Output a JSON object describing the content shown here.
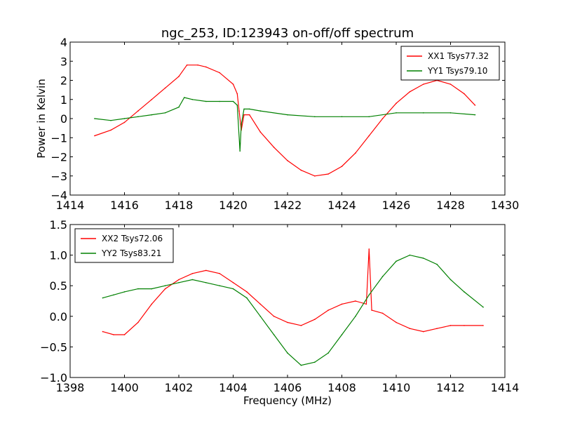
{
  "figure_title": "ngc_253, ID:123943 on-off/off spectrum",
  "chart_data": [
    {
      "type": "line",
      "title": "ngc_253, ID:123943 on-off/off spectrum",
      "xlabel": "",
      "ylabel": "Power in Kelvin",
      "xlim": [
        1414,
        1430
      ],
      "ylim": [
        -4,
        4
      ],
      "x_ticks": [
        1414,
        1416,
        1418,
        1420,
        1422,
        1424,
        1426,
        1428,
        1430
      ],
      "y_ticks": [
        -4,
        -3,
        -2,
        -1,
        0,
        1,
        2,
        3,
        4
      ],
      "x_tick_labels": [
        "1414",
        "1416",
        "1418",
        "1420",
        "1422",
        "1424",
        "1426",
        "1428",
        "1430"
      ],
      "y_tick_labels": [
        "−4",
        "−3",
        "−2",
        "−1",
        "0",
        "1",
        "2",
        "3",
        "4"
      ],
      "grid": false,
      "legend": "top-right",
      "series": [
        {
          "name": "XX1 Tsys77.32",
          "color": "#ff0000",
          "x": [
            1414.9,
            1415.5,
            1416.0,
            1416.5,
            1417.0,
            1417.5,
            1418.0,
            1418.3,
            1418.7,
            1419.0,
            1419.5,
            1420.0,
            1420.15,
            1420.22,
            1420.3,
            1420.4,
            1420.6,
            1421.0,
            1421.5,
            1422.0,
            1422.5,
            1423.0,
            1423.5,
            1424.0,
            1424.5,
            1425.0,
            1425.5,
            1426.0,
            1426.5,
            1427.0,
            1427.5,
            1428.0,
            1428.5,
            1428.9
          ],
          "y": [
            -0.9,
            -0.6,
            -0.2,
            0.4,
            1.0,
            1.6,
            2.2,
            2.8,
            2.8,
            2.7,
            2.4,
            1.8,
            1.3,
            0.4,
            -0.6,
            0.2,
            0.2,
            -0.7,
            -1.5,
            -2.2,
            -2.7,
            -3.0,
            -2.9,
            -2.5,
            -1.8,
            -0.9,
            0.0,
            0.8,
            1.4,
            1.8,
            2.0,
            1.8,
            1.3,
            0.7
          ]
        },
        {
          "name": "YY1 Tsys79.10",
          "color": "#008000",
          "x": [
            1414.9,
            1415.5,
            1416.0,
            1416.5,
            1417.0,
            1417.5,
            1418.0,
            1418.2,
            1418.5,
            1419.0,
            1419.5,
            1420.0,
            1420.15,
            1420.25,
            1420.3,
            1420.4,
            1420.6,
            1421.0,
            1422.0,
            1423.0,
            1424.0,
            1425.0,
            1426.0,
            1427.0,
            1428.0,
            1428.9
          ],
          "y": [
            0.0,
            -0.1,
            0.0,
            0.1,
            0.2,
            0.3,
            0.6,
            1.1,
            1.0,
            0.9,
            0.9,
            0.9,
            0.7,
            -1.7,
            -0.3,
            0.5,
            0.5,
            0.4,
            0.2,
            0.1,
            0.1,
            0.1,
            0.3,
            0.3,
            0.3,
            0.2
          ]
        }
      ]
    },
    {
      "type": "line",
      "title": "",
      "xlabel": "Frequency (MHz)",
      "ylabel": "",
      "xlim": [
        1398,
        1414
      ],
      "ylim": [
        -1.0,
        1.5
      ],
      "x_ticks": [
        1398,
        1400,
        1402,
        1404,
        1406,
        1408,
        1410,
        1412,
        1414
      ],
      "y_ticks": [
        -1.0,
        -0.5,
        0.0,
        0.5,
        1.0,
        1.5
      ],
      "x_tick_labels": [
        "1398",
        "1400",
        "1402",
        "1404",
        "1406",
        "1408",
        "1410",
        "1412",
        "1414"
      ],
      "y_tick_labels": [
        "−1.0",
        "−0.5",
        "0.0",
        "0.5",
        "1.0",
        "1.5"
      ],
      "grid": false,
      "legend": "top-left",
      "series": [
        {
          "name": "XX2 Tsys72.06",
          "color": "#ff0000",
          "x": [
            1399.2,
            1399.6,
            1400.0,
            1400.5,
            1401.0,
            1401.5,
            1402.0,
            1402.5,
            1403.0,
            1403.5,
            1404.0,
            1404.5,
            1405.0,
            1405.5,
            1406.0,
            1406.5,
            1407.0,
            1407.5,
            1408.0,
            1408.5,
            1408.9,
            1409.0,
            1409.1,
            1409.5,
            1410.0,
            1410.5,
            1411.0,
            1411.5,
            1412.0,
            1412.5,
            1413.2
          ],
          "y": [
            -0.25,
            -0.3,
            -0.3,
            -0.1,
            0.2,
            0.45,
            0.6,
            0.7,
            0.75,
            0.7,
            0.55,
            0.4,
            0.2,
            0.0,
            -0.1,
            -0.15,
            -0.05,
            0.1,
            0.2,
            0.25,
            0.2,
            1.1,
            0.1,
            0.05,
            -0.1,
            -0.2,
            -0.25,
            -0.2,
            -0.15,
            -0.15,
            -0.15
          ]
        },
        {
          "name": "YY2 Tsys83.21",
          "color": "#008000",
          "x": [
            1399.2,
            1399.6,
            1400.0,
            1400.5,
            1401.0,
            1401.5,
            1402.0,
            1402.5,
            1403.0,
            1403.5,
            1404.0,
            1404.5,
            1405.0,
            1405.5,
            1406.0,
            1406.5,
            1407.0,
            1407.5,
            1408.0,
            1408.5,
            1409.0,
            1409.5,
            1410.0,
            1410.5,
            1411.0,
            1411.5,
            1412.0,
            1412.5,
            1413.2
          ],
          "y": [
            0.3,
            0.35,
            0.4,
            0.45,
            0.45,
            0.5,
            0.55,
            0.6,
            0.55,
            0.5,
            0.45,
            0.3,
            0.0,
            -0.3,
            -0.6,
            -0.8,
            -0.75,
            -0.6,
            -0.3,
            0.0,
            0.35,
            0.65,
            0.9,
            1.0,
            0.95,
            0.85,
            0.6,
            0.4,
            0.15
          ]
        }
      ]
    }
  ]
}
